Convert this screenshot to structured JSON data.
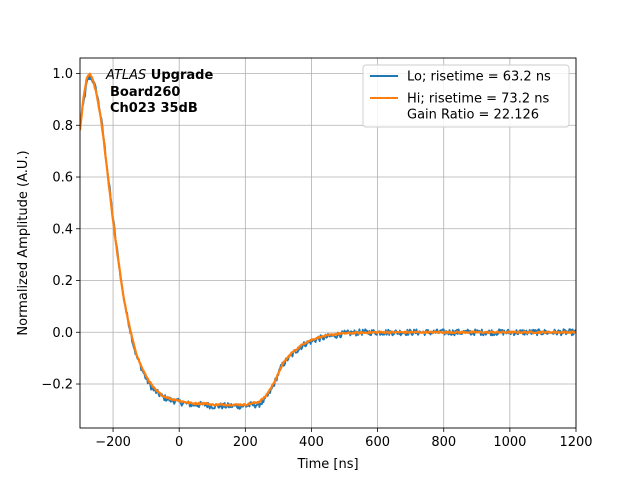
{
  "chart_data": {
    "type": "line",
    "title": "",
    "xlabel": "Time [ns]",
    "ylabel": "Normalized Amplitude (A.U.)",
    "xlim": [
      -300,
      1200
    ],
    "ylim": [
      -0.37,
      1.06
    ],
    "xticks": [
      -200,
      0,
      200,
      400,
      600,
      800,
      1000,
      1200
    ],
    "xtick_labels": [
      "−200",
      "0",
      "200",
      "400",
      "600",
      "800",
      "1000",
      "1200"
    ],
    "yticks": [
      -0.2,
      0.0,
      0.2,
      0.4,
      0.6,
      0.8,
      1.0
    ],
    "ytick_labels": [
      "−0.2",
      "0.0",
      "0.2",
      "0.4",
      "0.6",
      "0.8",
      "1.0"
    ],
    "grid": true,
    "legend_position": "top-right",
    "annotation": {
      "experiment_italic": "ATLAS",
      "experiment_bold": " Upgrade",
      "line2": "Board260",
      "line3": "Ch023 35dB"
    },
    "series": [
      {
        "name": "Lo; risetime = 63.2 ns",
        "color": "#1f77b4",
        "noise_amplitude": 0.012,
        "x": [
          -300,
          -290,
          -280,
          -270,
          -260,
          -250,
          -240,
          -230,
          -220,
          -210,
          -200,
          -190,
          -180,
          -170,
          -160,
          -150,
          -140,
          -130,
          -120,
          -110,
          -100,
          -90,
          -80,
          -70,
          -60,
          -50,
          -40,
          -30,
          -20,
          -10,
          0,
          20,
          40,
          60,
          80,
          100,
          120,
          140,
          160,
          180,
          200,
          220,
          240,
          250,
          260,
          270,
          280,
          290,
          300,
          310,
          320,
          330,
          340,
          350,
          360,
          370,
          380,
          390,
          400,
          420,
          440,
          460,
          480,
          500,
          550,
          600,
          650,
          700,
          750,
          800,
          850,
          900,
          950,
          1000,
          1050,
          1100,
          1150,
          1200
        ],
        "y": [
          0.8,
          0.88,
          0.96,
          0.99,
          0.97,
          0.93,
          0.86,
          0.77,
          0.66,
          0.55,
          0.44,
          0.34,
          0.24,
          0.15,
          0.08,
          0.02,
          -0.04,
          -0.09,
          -0.12,
          -0.15,
          -0.18,
          -0.2,
          -0.22,
          -0.23,
          -0.24,
          -0.25,
          -0.255,
          -0.26,
          -0.265,
          -0.265,
          -0.27,
          -0.275,
          -0.28,
          -0.28,
          -0.28,
          -0.285,
          -0.285,
          -0.285,
          -0.285,
          -0.285,
          -0.285,
          -0.28,
          -0.28,
          -0.27,
          -0.26,
          -0.24,
          -0.22,
          -0.19,
          -0.16,
          -0.13,
          -0.115,
          -0.1,
          -0.09,
          -0.075,
          -0.065,
          -0.055,
          -0.045,
          -0.04,
          -0.035,
          -0.025,
          -0.02,
          -0.015,
          -0.01,
          -0.005,
          0.0,
          0.0,
          0.0,
          0.0,
          0.0,
          0.0,
          0.0,
          0.0,
          0.0,
          0.0,
          0.0,
          0.0,
          0.0,
          0.0
        ]
      },
      {
        "name": "Hi; risetime = 73.2 ns\n Gain Ratio = 22.126",
        "color": "#ff7f0e",
        "noise_amplitude": 0.003,
        "x": [
          -300,
          -290,
          -280,
          -270,
          -260,
          -250,
          -240,
          -230,
          -220,
          -210,
          -200,
          -190,
          -180,
          -170,
          -160,
          -150,
          -140,
          -130,
          -120,
          -110,
          -100,
          -90,
          -80,
          -70,
          -60,
          -50,
          -40,
          -30,
          -20,
          -10,
          0,
          20,
          40,
          60,
          80,
          100,
          120,
          140,
          160,
          180,
          200,
          220,
          240,
          250,
          260,
          270,
          280,
          290,
          300,
          310,
          320,
          330,
          340,
          350,
          360,
          370,
          380,
          390,
          400,
          420,
          440,
          460,
          480,
          500,
          550,
          600,
          650,
          700,
          750,
          800,
          850,
          900,
          950,
          1000,
          1050,
          1100,
          1150,
          1200
        ],
        "y": [
          0.78,
          0.9,
          0.98,
          1.0,
          0.97,
          0.92,
          0.85,
          0.76,
          0.65,
          0.54,
          0.43,
          0.33,
          0.24,
          0.15,
          0.08,
          0.02,
          -0.035,
          -0.08,
          -0.115,
          -0.145,
          -0.17,
          -0.19,
          -0.21,
          -0.225,
          -0.235,
          -0.245,
          -0.25,
          -0.255,
          -0.26,
          -0.26,
          -0.265,
          -0.27,
          -0.275,
          -0.275,
          -0.275,
          -0.28,
          -0.28,
          -0.28,
          -0.28,
          -0.28,
          -0.28,
          -0.275,
          -0.27,
          -0.26,
          -0.25,
          -0.23,
          -0.21,
          -0.185,
          -0.16,
          -0.13,
          -0.11,
          -0.095,
          -0.08,
          -0.07,
          -0.06,
          -0.05,
          -0.04,
          -0.035,
          -0.03,
          -0.02,
          -0.015,
          -0.01,
          -0.006,
          -0.004,
          -0.002,
          0.0,
          0.0,
          0.0,
          0.0,
          0.0,
          0.0,
          0.0,
          0.0,
          0.0,
          0.0,
          0.0,
          0.0,
          0.0
        ]
      }
    ]
  }
}
